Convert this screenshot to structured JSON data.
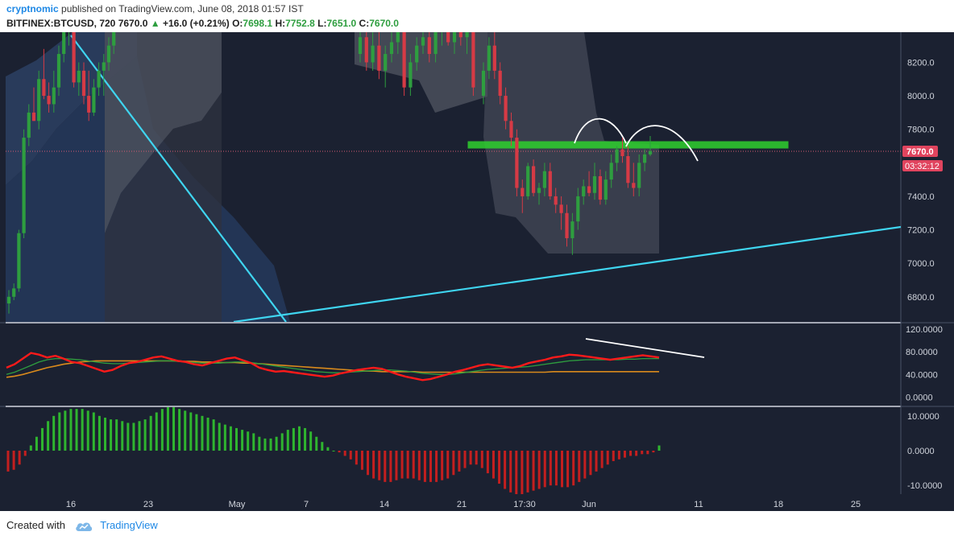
{
  "header": {
    "author": "cryptnomic",
    "published": "published on TradingView.com, June 08, 2018 01:57 IST",
    "symbol": "BITFINEX:BTCUSD, 720",
    "price": "7670.0",
    "change_arrow": "▲",
    "change": "+16.0 (+0.21%)",
    "o_label": "O:",
    "o_value": "7698.1",
    "h_label": "H:",
    "h_value": "7752.8",
    "l_label": "L:",
    "l_value": "7651.0",
    "c_label": "C:",
    "c_value": "7670.0"
  },
  "footer": {
    "created_with": "Created with",
    "brand": "TradingView"
  },
  "colors": {
    "up": "#2e9e3f",
    "down": "#d63a45",
    "rsi": "#ff1a1a",
    "sma_green": "#2e9e3f",
    "sma_orange": "#d98a1c",
    "trendline": "#3fd5f0",
    "zone": "#22cc22",
    "bg": "#1b2131"
  },
  "chart_data": [
    {
      "type": "candlestick",
      "symbol": "BITFINEX:BTCUSD",
      "timeframe": "720",
      "price_axis_labels": [
        "8200.0",
        "8000.0",
        "7800.0",
        "7400.0",
        "7200.0",
        "7000.0",
        "6800.0"
      ],
      "last_price_label": "7670.0",
      "countdown_label": "03:32:12",
      "time_axis_labels": [
        "16",
        "23",
        "May",
        "7",
        "14",
        "21",
        "17:30",
        "Jun",
        "11",
        "18",
        "25"
      ],
      "ylim": [
        6650,
        8380
      ],
      "annotations": [
        "resistance zone 7690-7730",
        "descending trendline",
        "ascending trendline",
        "double-top arcs"
      ],
      "ohlc": [
        [
          6760,
          6840,
          6700,
          6800
        ],
        [
          6800,
          6880,
          6780,
          6850
        ],
        [
          6850,
          7200,
          6830,
          7180
        ],
        [
          7180,
          7800,
          7150,
          7750
        ],
        [
          7750,
          7950,
          7700,
          7900
        ],
        [
          7900,
          8050,
          7850,
          7850
        ],
        [
          7850,
          8150,
          7800,
          8100
        ],
        [
          8100,
          8280,
          7980,
          8000
        ],
        [
          8000,
          8080,
          7900,
          7950
        ],
        [
          7950,
          8150,
          7900,
          8050
        ],
        [
          8050,
          8300,
          8000,
          8250
        ],
        [
          8250,
          8400,
          8200,
          8380
        ],
        [
          8380,
          8500,
          8300,
          8450
        ],
        [
          8450,
          8500,
          8050,
          8080
        ],
        [
          8080,
          8200,
          8000,
          8150
        ],
        [
          8150,
          8200,
          7950,
          8000
        ],
        [
          8000,
          8150,
          7850,
          7900
        ],
        [
          7900,
          8100,
          7880,
          8050
        ],
        [
          8050,
          8200,
          8000,
          8150
        ],
        [
          8150,
          8250,
          8000,
          8200
        ],
        [
          8200,
          8350,
          8150,
          8300
        ],
        [
          8300,
          8450,
          8250,
          8380
        ]
      ]
    },
    {
      "type": "line",
      "name": "RSI",
      "axis_labels": [
        "120.0000",
        "80.0000",
        "40.0000",
        "0.0000"
      ],
      "ylim": [
        -15,
        130
      ],
      "series": [
        {
          "name": "RSI",
          "color": "#ff1a1a",
          "values": [
            52,
            58,
            68,
            78,
            75,
            70,
            73,
            68,
            62,
            60,
            55,
            50,
            45,
            48,
            55,
            60,
            62,
            66,
            70,
            72,
            68,
            64,
            62,
            58,
            56,
            60,
            64,
            68,
            70,
            65,
            60,
            52,
            48,
            45,
            46,
            44,
            42,
            40,
            38,
            36,
            38,
            42,
            45,
            48,
            50,
            52,
            50,
            45,
            40,
            36,
            33,
            30,
            32,
            36,
            40,
            45,
            48,
            52,
            56,
            58,
            56,
            54,
            52,
            55,
            60,
            63,
            66,
            70,
            72,
            75,
            74,
            72,
            70,
            68,
            66,
            68,
            70,
            72,
            74,
            72,
            70
          ]
        },
        {
          "name": "MA",
          "color": "#2e9e3f",
          "values": [
            40,
            44,
            50,
            56,
            62,
            66,
            68,
            68,
            67,
            66,
            64,
            62,
            60,
            59,
            59,
            60,
            61,
            62,
            63,
            64,
            64,
            63,
            62,
            61,
            60,
            60,
            60,
            61,
            62,
            62,
            61,
            59,
            57,
            55,
            53,
            51,
            49,
            47,
            45,
            44,
            43,
            43,
            44,
            45,
            46,
            47,
            48,
            48,
            47,
            46,
            44,
            42,
            41,
            40,
            40,
            41,
            43,
            45,
            47,
            49,
            50,
            51,
            52,
            53,
            54,
            56,
            58,
            60,
            62,
            64,
            65,
            66,
            66,
            66,
            66,
            66,
            67,
            67,
            68,
            68,
            68
          ]
        },
        {
          "name": "MA2",
          "color": "#d98a1c",
          "values": [
            35,
            37,
            40,
            44,
            48,
            52,
            55,
            58,
            60,
            62,
            63,
            64,
            64,
            64,
            64,
            64,
            64,
            64,
            64,
            64,
            64,
            64,
            63,
            63,
            62,
            62,
            61,
            61,
            61,
            60,
            60,
            59,
            58,
            57,
            56,
            55,
            54,
            53,
            52,
            51,
            50,
            49,
            48,
            47,
            46,
            46,
            45,
            45,
            45,
            45,
            45,
            44,
            44,
            44,
            44,
            44,
            44,
            44,
            44,
            44,
            44,
            44,
            44,
            44,
            44,
            44,
            44,
            45,
            45,
            45,
            45,
            45,
            45,
            45,
            45,
            45,
            45,
            45,
            45,
            45,
            45
          ]
        }
      ]
    },
    {
      "type": "bar",
      "name": "MACD histogram",
      "axis_labels": [
        "10.0000",
        "0.0000",
        "-10.0000"
      ],
      "ylim": [
        -12.5,
        12.5
      ],
      "values": [
        -6,
        -5.5,
        -4,
        -1.5,
        1.5,
        4,
        6.5,
        8.5,
        10,
        11,
        11.5,
        12,
        12,
        12,
        11.5,
        11,
        10,
        9.5,
        9,
        9,
        8.5,
        8,
        8,
        8.5,
        9,
        10,
        11,
        12,
        12.5,
        12.5,
        12,
        11.5,
        11,
        10.5,
        10,
        9.5,
        9,
        8,
        7.5,
        7,
        6.5,
        6,
        5.5,
        5,
        4,
        3.5,
        3.5,
        4,
        5,
        6,
        6.5,
        7,
        6.5,
        5.5,
        4,
        2.5,
        1,
        0,
        -0.5,
        -1.5,
        -2.5,
        -4,
        -5.5,
        -7,
        -8,
        -8.5,
        -9,
        -9,
        -8.5,
        -8,
        -8,
        -8,
        -8.5,
        -9,
        -9,
        -9,
        -8.5,
        -8,
        -7,
        -6,
        -5,
        -4,
        -4,
        -5,
        -6.5,
        -8,
        -9.5,
        -11,
        -12,
        -12.5,
        -12.5,
        -12,
        -11.5,
        -11,
        -10.5,
        -10,
        -10,
        -10.5,
        -10.5,
        -10,
        -9,
        -8,
        -7,
        -6,
        -5,
        -4,
        -3,
        -2.5,
        -2,
        -1.5,
        -1.5,
        -1,
        -1,
        -0.5,
        1.5
      ]
    }
  ]
}
